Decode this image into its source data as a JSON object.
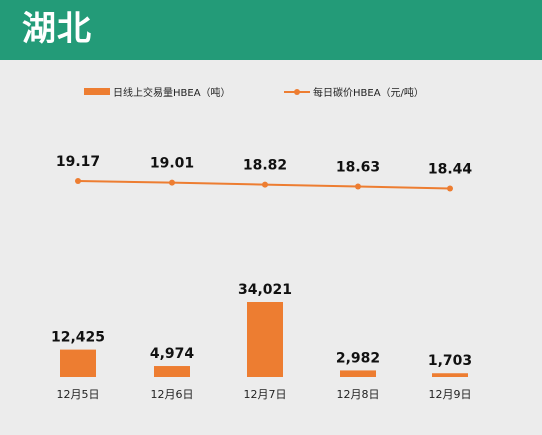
{
  "page": {
    "title": "湖北"
  },
  "legend": {
    "bar_label": "日线上交易量HBEA（吨）",
    "line_label": "每日碳价HBEA（元/吨）"
  },
  "colors": {
    "banner": "#239b78",
    "series": "#ed7d31",
    "background": "#ebebeb"
  },
  "chart_data": {
    "type": "bar",
    "categories": [
      "12月5日",
      "12月6日",
      "12月7日",
      "12月8日",
      "12月9日"
    ],
    "series": [
      {
        "name": "日线上交易量HBEA（吨）",
        "type": "bar",
        "values": [
          12425,
          4974,
          34021,
          2982,
          1703
        ],
        "labels": [
          "12,425",
          "4,974",
          "34,021",
          "2,982",
          "1,703"
        ]
      },
      {
        "name": "每日碳价HBEA（元/吨）",
        "type": "line",
        "values": [
          19.17,
          19.01,
          18.82,
          18.63,
          18.44
        ],
        "labels": [
          "19.17",
          "19.01",
          "18.82",
          "18.63",
          "18.44"
        ]
      }
    ],
    "legend_position": "top",
    "grid": false
  }
}
